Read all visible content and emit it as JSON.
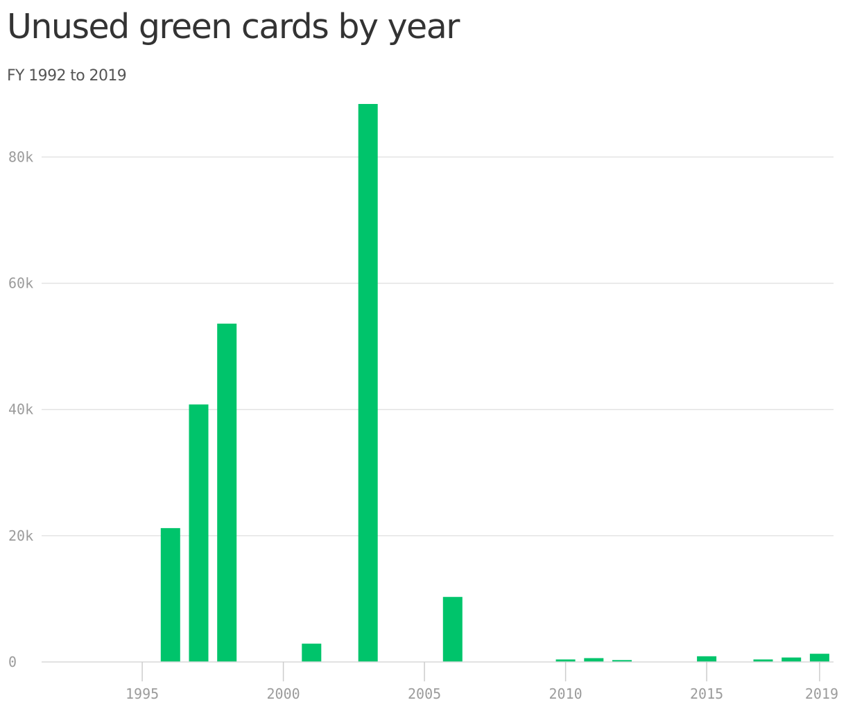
{
  "chart_data": {
    "type": "bar",
    "title": "Unused green cards by year",
    "subtitle": "FY 1992 to 2019",
    "xlabel": "",
    "ylabel": "",
    "x": [
      1992,
      1993,
      1994,
      1995,
      1996,
      1997,
      1998,
      1999,
      2000,
      2001,
      2002,
      2003,
      2004,
      2005,
      2006,
      2007,
      2008,
      2009,
      2010,
      2011,
      2012,
      2013,
      2014,
      2015,
      2016,
      2017,
      2018,
      2019
    ],
    "values": [
      0,
      0,
      0,
      0,
      21200,
      40800,
      53600,
      0,
      0,
      2900,
      0,
      88400,
      0,
      0,
      10300,
      0,
      0,
      0,
      400,
      600,
      300,
      0,
      0,
      900,
      0,
      400,
      700,
      1300
    ],
    "xlim": [
      1992,
      2019
    ],
    "ylim": [
      0,
      88400
    ],
    "x_ticks": [
      1995,
      2000,
      2005,
      2010,
      2015,
      2019
    ],
    "y_ticks": [
      0,
      20000,
      40000,
      60000,
      80000
    ],
    "y_tick_labels": [
      "0",
      "20k",
      "40k",
      "60k",
      "80k"
    ],
    "grid": true,
    "bar_color": "#00c46b",
    "grid_color": "#e3e3e3",
    "tick_label_color": "#9b9b9b"
  }
}
